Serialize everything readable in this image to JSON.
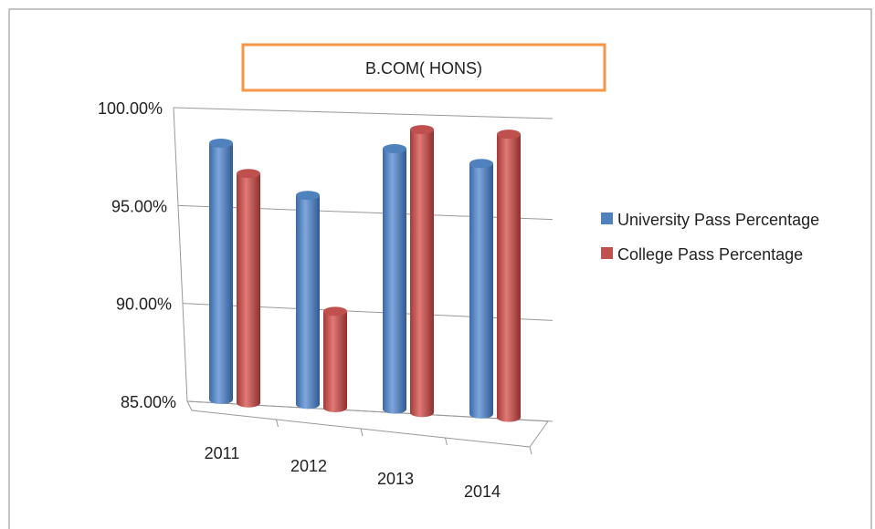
{
  "chart_data": {
    "type": "bar3d",
    "title": "B.COM( HONS)",
    "categories": [
      "2011",
      "2012",
      "2013",
      "2014"
    ],
    "series": [
      {
        "name": "University Pass Percentage",
        "color": "#4f81bd",
        "values": [
          98.8,
          96.3,
          98.8,
          98.2
        ]
      },
      {
        "name": "College Pass Percentage",
        "color": "#c0504d",
        "values": [
          97.3,
          90.5,
          99.8,
          99.7
        ]
      }
    ],
    "ylim": [
      85,
      100
    ],
    "yticks": [
      {
        "value": 85,
        "label": "85.00%"
      },
      {
        "value": 90,
        "label": "90.00%"
      },
      {
        "value": 95,
        "label": "95.00%"
      },
      {
        "value": 100,
        "label": "100.00%"
      }
    ],
    "grid": true,
    "legend": "right"
  }
}
